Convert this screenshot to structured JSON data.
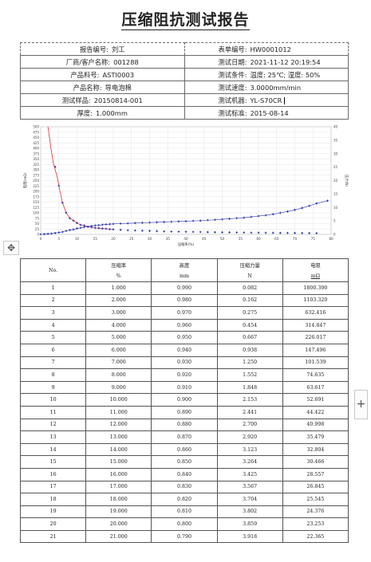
{
  "title": "压缩阻抗测试报告",
  "info": [
    {
      "l_label": "报告编号:",
      "l_value": "刘工",
      "r_label": "表单编号:",
      "r_value": "HW0001012"
    },
    {
      "l_label": "厂商/客户名称:",
      "l_value": "001288",
      "r_label": "测试日期:",
      "r_value": "2021-11-12 20:19:54"
    },
    {
      "l_label": "产品料号:",
      "l_value": "ASTI0003",
      "r_label": "测试条件:",
      "r_value": "温度: 25℃; 湿度: 50%"
    },
    {
      "l_label": "产品名称:",
      "l_value": "导电泡棉",
      "r_label": "测试速度:",
      "r_value": "3.0000mm/min"
    },
    {
      "l_label": "测试样品:",
      "l_value": "20150814-001",
      "r_label": "测试机器:",
      "r_value": "YL-S70CR"
    },
    {
      "l_label": "厚度:",
      "l_value": "1.000mm",
      "r_label": "测试标准:",
      "r_value": "2015-08-14"
    }
  ],
  "chart_data": {
    "type": "line",
    "xlabel": "压缩率(%)",
    "ylabel": "电阻(mΩ)",
    "y2label": "压力(N)",
    "xlim": [
      0,
      80
    ],
    "ylim": [
      0,
      500
    ],
    "y2lim": [
      0,
      40
    ],
    "xticks": [
      0,
      5,
      10,
      15,
      20,
      25,
      30,
      35,
      40,
      45,
      50,
      55,
      60,
      65,
      70,
      75,
      80
    ],
    "yticks": [
      0,
      25,
      50,
      75,
      100,
      125,
      150,
      175,
      200,
      225,
      250,
      275,
      300,
      325,
      350,
      375,
      400,
      425,
      450,
      475,
      500
    ],
    "y2ticks": [
      0,
      5,
      10,
      15,
      20,
      25,
      30,
      35,
      40
    ],
    "grid": true,
    "series": [
      {
        "axis": "left",
        "color": "#e03030",
        "style": "line",
        "x": [
          2,
          2.5,
          3,
          3.5,
          4,
          4.5,
          5,
          6,
          7,
          8,
          9,
          10,
          11,
          12,
          13,
          14,
          15,
          16,
          17,
          18,
          19,
          20
        ],
        "values": [
          500,
          440,
          380,
          330,
          300,
          270,
          226,
          147,
          101,
          75,
          64,
          53,
          44,
          41,
          35,
          33,
          30,
          29,
          27,
          26,
          24,
          23
        ]
      },
      {
        "axis": "left",
        "color": "#2a35a8",
        "style": "markers",
        "x": [
          4,
          5,
          6,
          7,
          8,
          9,
          10,
          11,
          12,
          13,
          14,
          15,
          16,
          17,
          18,
          19,
          20,
          22,
          24,
          26,
          28,
          30,
          32,
          34,
          36,
          38,
          40,
          42,
          44,
          46,
          48,
          50,
          52,
          54,
          56,
          58,
          60,
          62,
          64,
          66,
          68,
          70,
          72,
          74,
          76
        ],
        "values": [
          314,
          226,
          147,
          101,
          75,
          64,
          53,
          44,
          41,
          35,
          33,
          30,
          29,
          27,
          26,
          24,
          23,
          21,
          19,
          18,
          17,
          16,
          15,
          14,
          13,
          12.5,
          12,
          11.5,
          11,
          10.5,
          10,
          9.6,
          9.2,
          8.8,
          8.4,
          8,
          7.7,
          7.4,
          7.1,
          6.8,
          6.5,
          6.2,
          6,
          5.8,
          5.6
        ]
      },
      {
        "axis": "right",
        "color": "#2a35a8",
        "style": "line-markers",
        "x": [
          0,
          1,
          2,
          3,
          4,
          5,
          6,
          7,
          8,
          9,
          10,
          11,
          12,
          13,
          14,
          15,
          16,
          17,
          18,
          19,
          20,
          22,
          24,
          26,
          28,
          30,
          32,
          34,
          36,
          38,
          40,
          42,
          44,
          46,
          48,
          50,
          52,
          54,
          56,
          58,
          60,
          62,
          64,
          66,
          68,
          70,
          72,
          74,
          76,
          79
        ],
        "values": [
          0,
          0.1,
          0.2,
          0.3,
          0.5,
          0.7,
          0.9,
          1.3,
          1.6,
          1.8,
          2.2,
          2.4,
          2.7,
          2.9,
          3.1,
          3.3,
          3.4,
          3.6,
          3.7,
          3.8,
          3.9,
          4.0,
          4.1,
          4.2,
          4.3,
          4.4,
          4.5,
          4.6,
          4.7,
          4.8,
          4.9,
          5.0,
          5.1,
          5.3,
          5.4,
          5.6,
          5.8,
          6.0,
          6.2,
          6.5,
          6.8,
          7.1,
          7.5,
          8.0,
          8.5,
          9.1,
          9.8,
          10.6,
          11.5,
          12.5
        ]
      }
    ]
  },
  "table": {
    "headers": [
      {
        "main": "No.",
        "unit": ""
      },
      {
        "main": "压缩率",
        "unit": "%"
      },
      {
        "main": "高度",
        "unit": "mm"
      },
      {
        "main": "压缩力量",
        "unit": "N"
      },
      {
        "main": "电阻",
        "unit": "mΩ"
      }
    ],
    "rows": [
      [
        "1",
        "1.000",
        "0.990",
        "0.082",
        "1800.390"
      ],
      [
        "2",
        "2.000",
        "0.980",
        "0.162",
        "1103.320"
      ],
      [
        "3",
        "3.000",
        "0.970",
        "0.275",
        "632.416"
      ],
      [
        "4",
        "4.000",
        "0.960",
        "0.454",
        "314.847"
      ],
      [
        "5",
        "5.000",
        "0.950",
        "0.667",
        "226.017"
      ],
      [
        "6",
        "6.000",
        "0.940",
        "0.938",
        "147.496"
      ],
      [
        "7",
        "7.000",
        "0.930",
        "1.250",
        "101.539"
      ],
      [
        "8",
        "8.000",
        "0.920",
        "1.552",
        "74.635"
      ],
      [
        "9",
        "9.000",
        "0.910",
        "1.848",
        "63.617"
      ],
      [
        "10",
        "10.000",
        "0.900",
        "2.153",
        "52.691"
      ],
      [
        "11",
        "11.000",
        "0.890",
        "2.441",
        "44.422"
      ],
      [
        "12",
        "12.000",
        "0.880",
        "2.700",
        "40.998"
      ],
      [
        "13",
        "13.000",
        "0.870",
        "2.920",
        "35.479"
      ],
      [
        "14",
        "14.000",
        "0.860",
        "3.123",
        "32.804"
      ],
      [
        "15",
        "15.000",
        "0.850",
        "3.264",
        "30.466"
      ],
      [
        "16",
        "16.000",
        "0.840",
        "3.425",
        "28.557"
      ],
      [
        "17",
        "17.000",
        "0.830",
        "3.567",
        "26.845"
      ],
      [
        "18",
        "18.000",
        "0.820",
        "3.704",
        "25.545"
      ],
      [
        "19",
        "19.000",
        "0.810",
        "3.802",
        "24.376"
      ],
      [
        "20",
        "20.000",
        "0.800",
        "3.859",
        "23.253"
      ],
      [
        "21",
        "21.000",
        "0.790",
        "3.918",
        "22.365"
      ]
    ]
  },
  "ui": {
    "move_icon": "move-icon",
    "plus_icon": "plus-icon"
  }
}
